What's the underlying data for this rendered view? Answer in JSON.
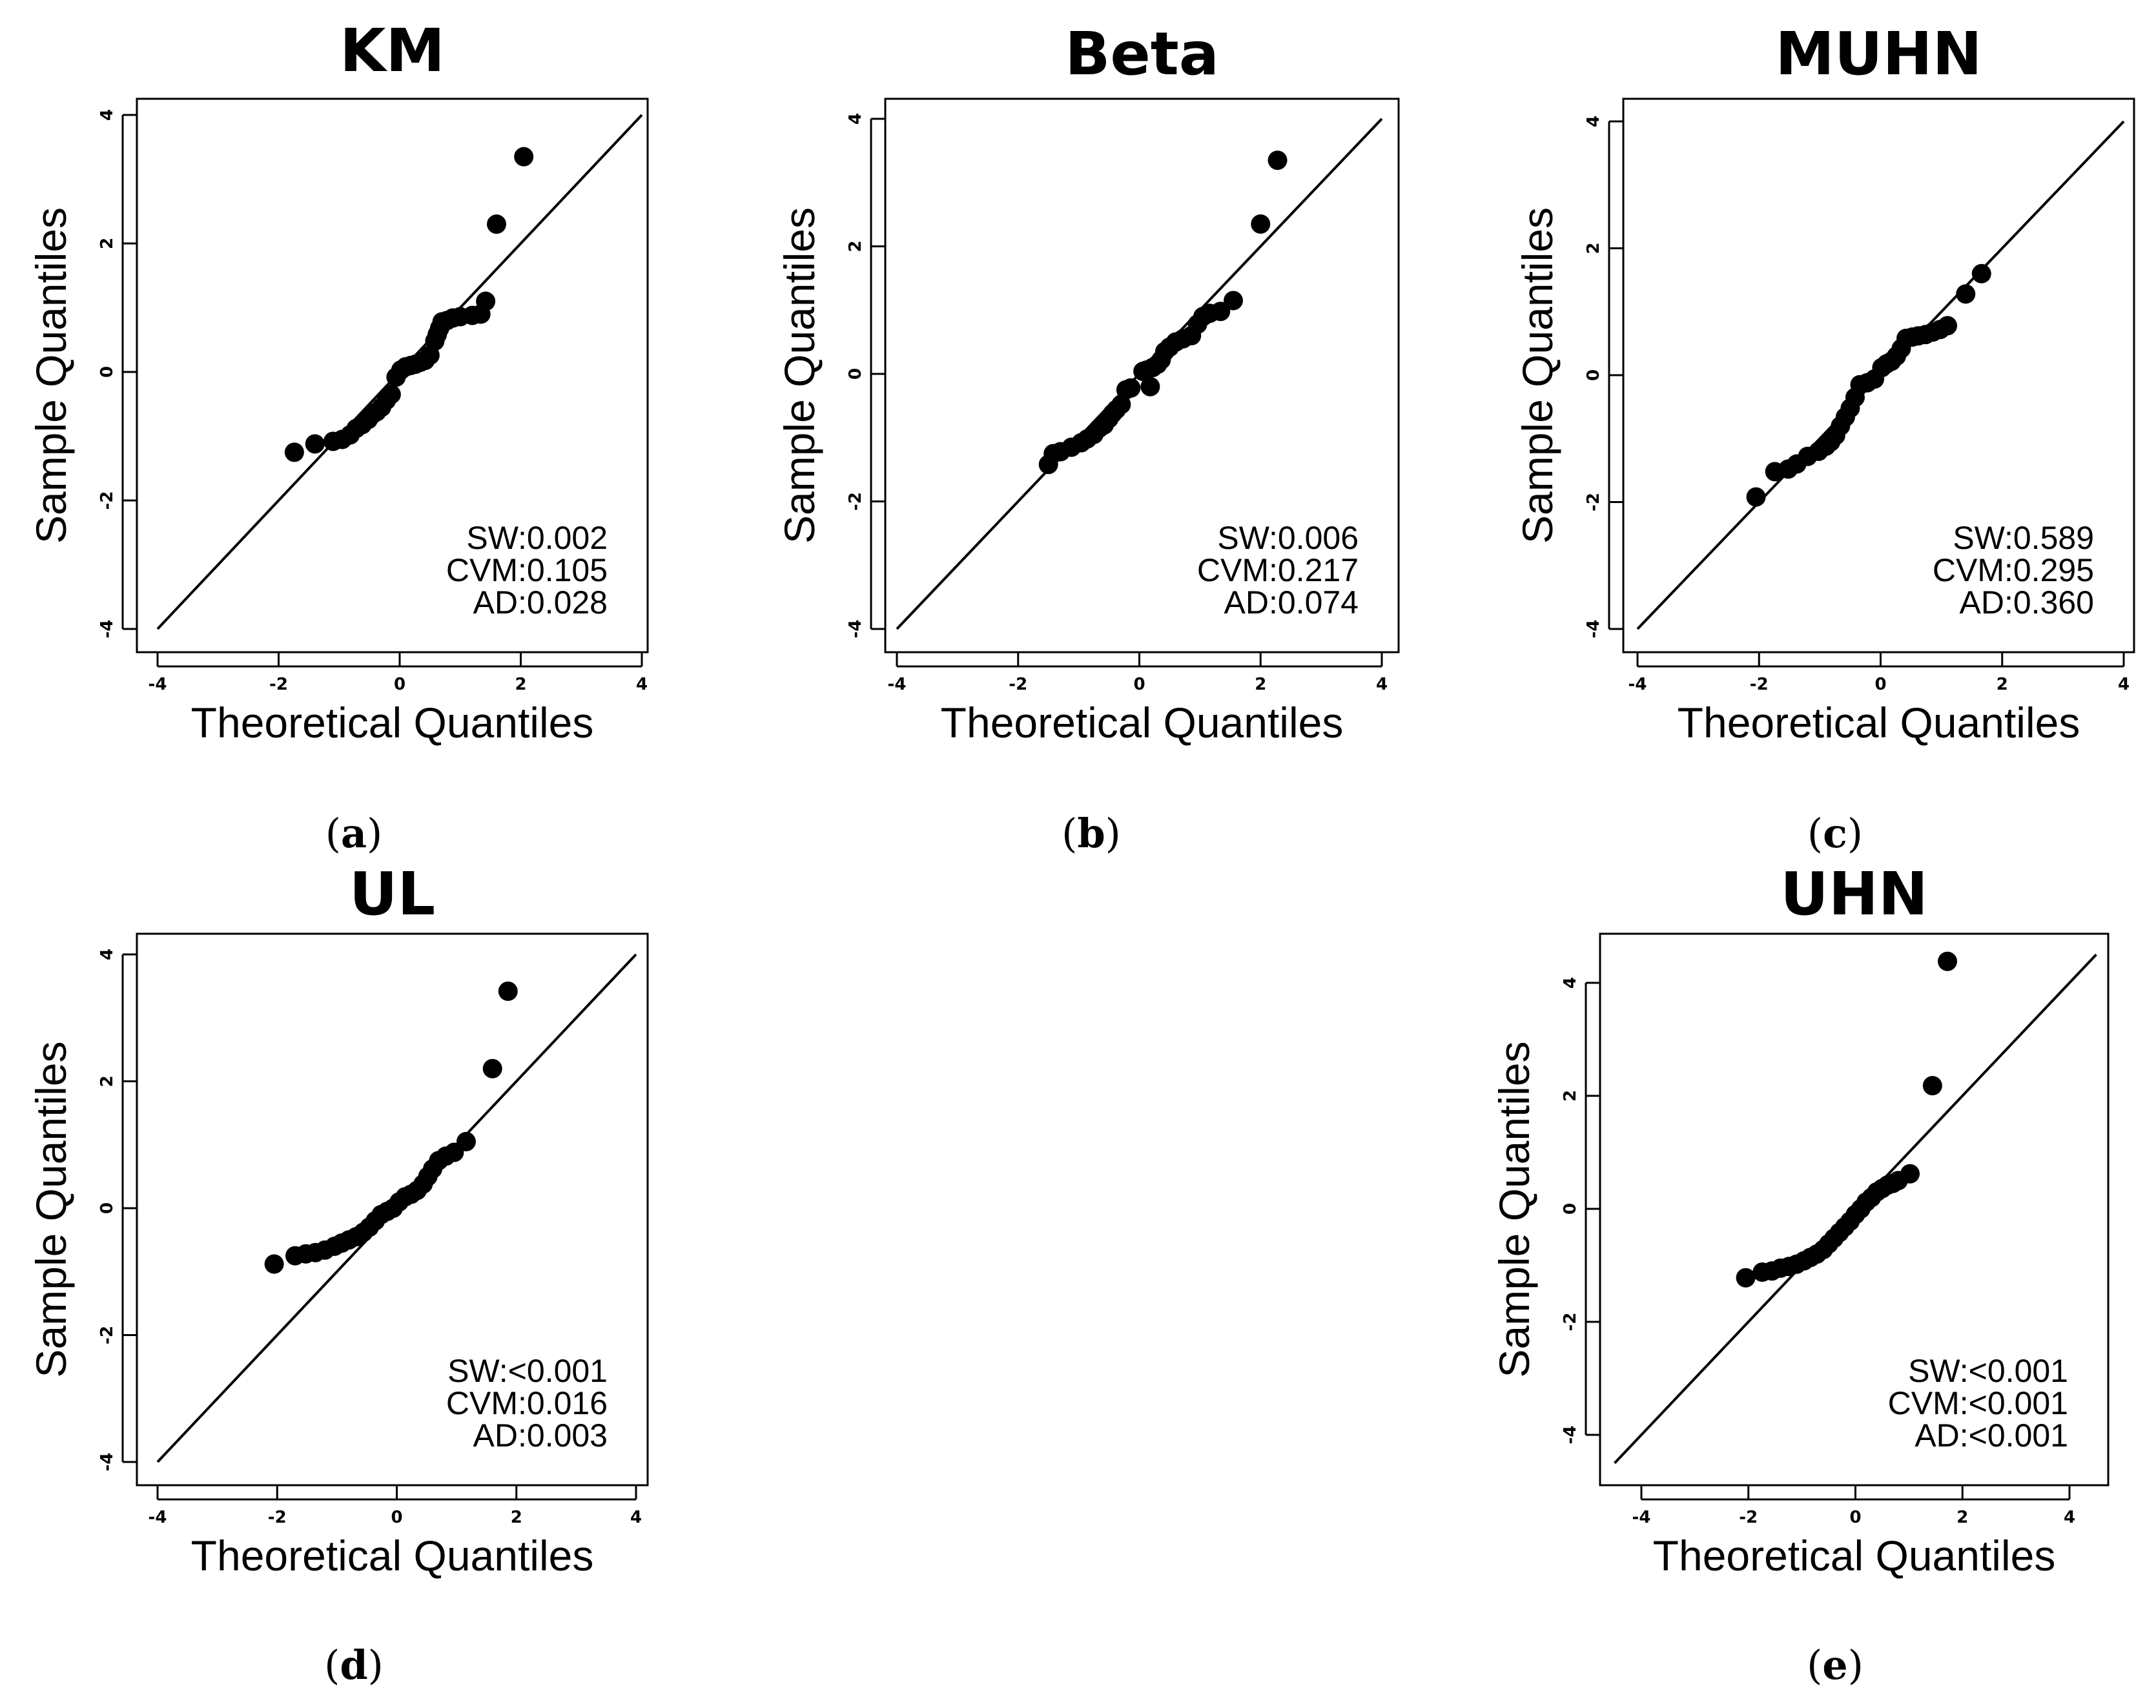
{
  "chart_data": [
    {
      "type": "scatter",
      "title": "KM",
      "caption": "a",
      "xlabel": "Theoretical Quantiles",
      "ylabel": "Sample Quantiles",
      "xlim": [
        -4,
        4
      ],
      "ylim": [
        -4,
        4
      ],
      "xticks": [
        "-4",
        "-2",
        "0",
        "2",
        "4"
      ],
      "yticks": [
        "-4",
        "-2",
        "0",
        "2",
        "4"
      ],
      "reference_line": [
        [
          -4,
          -4
        ],
        [
          4,
          4
        ]
      ],
      "stats": [
        "SW:0.002",
        "CVM:0.105",
        "AD:0.028"
      ],
      "x": [
        -1.74,
        -1.4,
        -1.1,
        -0.95,
        -0.82,
        -0.72,
        -0.62,
        -0.52,
        -0.45,
        -0.38,
        -0.3,
        -0.22,
        -0.14,
        -0.06,
        0.02,
        0.1,
        0.18,
        0.26,
        0.34,
        0.42,
        0.5,
        0.58,
        0.62,
        0.66,
        0.7,
        0.78,
        0.88,
        1.0,
        1.2,
        1.34,
        1.42,
        1.6,
        2.05
      ],
      "y": [
        -1.25,
        -1.12,
        -1.08,
        -1.05,
        -0.98,
        -0.88,
        -0.82,
        -0.74,
        -0.66,
        -0.62,
        -0.55,
        -0.44,
        -0.35,
        -0.08,
        0.03,
        0.08,
        0.1,
        0.12,
        0.15,
        0.18,
        0.26,
        0.48,
        0.58,
        0.68,
        0.78,
        0.8,
        0.84,
        0.86,
        0.88,
        0.9,
        1.1,
        2.3,
        3.35
      ]
    },
    {
      "type": "scatter",
      "title": "Beta",
      "caption": "b",
      "xlabel": "Theoretical Quantiles",
      "ylabel": "Sample Quantiles",
      "xlim": [
        -4,
        4
      ],
      "ylim": [
        -4,
        4
      ],
      "xticks": [
        "-4",
        "-2",
        "0",
        "2",
        "4"
      ],
      "yticks": [
        "-4",
        "-2",
        "0",
        "2",
        "4"
      ],
      "reference_line": [
        [
          -4,
          -4
        ],
        [
          4,
          4
        ]
      ],
      "stats": [
        "SW:0.006",
        "CVM:0.217",
        "AD:0.074"
      ],
      "x": [
        -1.5,
        -1.42,
        -1.3,
        -1.12,
        -0.96,
        -0.86,
        -0.75,
        -0.66,
        -0.58,
        -0.5,
        -0.44,
        -0.38,
        -0.3,
        -0.22,
        -0.14,
        0.06,
        0.12,
        0.22,
        0.3,
        0.36,
        0.42,
        0.5,
        0.6,
        0.72,
        0.86,
        0.96,
        1.05,
        1.16,
        1.34,
        1.55,
        2.0,
        2.28,
        0.18
      ],
      "y": [
        -1.42,
        -1.25,
        -1.22,
        -1.15,
        -1.08,
        -1.02,
        -0.95,
        -0.85,
        -0.8,
        -0.7,
        -0.62,
        -0.56,
        -0.48,
        -0.25,
        -0.22,
        0.04,
        0.06,
        0.1,
        0.15,
        0.22,
        0.35,
        0.42,
        0.5,
        0.55,
        0.6,
        0.78,
        0.9,
        0.95,
        0.98,
        1.15,
        2.35,
        3.35,
        -0.2
      ]
    },
    {
      "type": "scatter",
      "title": "MUHN",
      "caption": "c",
      "xlabel": "Theoretical Quantiles",
      "ylabel": "Sample Quantiles",
      "xlim": [
        -4,
        4
      ],
      "ylim": [
        -4,
        4
      ],
      "xticks": [
        "-4",
        "-2",
        "0",
        "2",
        "4"
      ],
      "yticks": [
        "-4",
        "-2",
        "0",
        "2",
        "4"
      ],
      "reference_line": [
        [
          -4,
          -4
        ],
        [
          4,
          4
        ]
      ],
      "stats": [
        "SW:0.589",
        "CVM:0.295",
        "AD:0.360"
      ],
      "x": [
        -2.05,
        -1.74,
        -1.52,
        -1.38,
        -1.2,
        -1.02,
        -0.9,
        -0.82,
        -0.74,
        -0.66,
        -0.58,
        -0.5,
        -0.42,
        -0.34,
        -0.22,
        -0.1,
        0.02,
        0.1,
        0.18,
        0.26,
        0.34,
        0.42,
        0.52,
        0.62,
        0.74,
        0.86,
        0.98,
        1.1,
        1.4,
        1.66
      ],
      "y": [
        -1.92,
        -1.52,
        -1.48,
        -1.4,
        -1.28,
        -1.2,
        -1.12,
        -1.05,
        -0.95,
        -0.8,
        -0.66,
        -0.52,
        -0.35,
        -0.15,
        -0.12,
        -0.06,
        0.12,
        0.18,
        0.22,
        0.3,
        0.42,
        0.58,
        0.6,
        0.62,
        0.64,
        0.68,
        0.72,
        0.78,
        1.28,
        1.6
      ]
    },
    {
      "type": "scatter",
      "title": "UL",
      "caption": "d",
      "xlabel": "Theoretical Quantiles",
      "ylabel": "Sample Quantiles",
      "xlim": [
        -4,
        4
      ],
      "ylim": [
        -4,
        4
      ],
      "xticks": [
        "-4",
        "-2",
        "0",
        "2",
        "4"
      ],
      "yticks": [
        "-4",
        "-2",
        "0",
        "2",
        "4"
      ],
      "reference_line": [
        [
          -4,
          -4
        ],
        [
          4,
          4
        ]
      ],
      "stats": [
        "SW:<0.001",
        "CVM:0.016",
        "AD:0.003"
      ],
      "x": [
        -2.05,
        -1.7,
        -1.52,
        -1.36,
        -1.2,
        -1.04,
        -0.92,
        -0.8,
        -0.68,
        -0.56,
        -0.46,
        -0.36,
        -0.26,
        -0.16,
        -0.06,
        0.04,
        0.14,
        0.24,
        0.34,
        0.44,
        0.52,
        0.6,
        0.7,
        0.82,
        0.96,
        1.16,
        1.6,
        1.86
      ],
      "y": [
        -0.88,
        -0.75,
        -0.72,
        -0.7,
        -0.66,
        -0.6,
        -0.55,
        -0.5,
        -0.45,
        -0.38,
        -0.3,
        -0.2,
        -0.1,
        -0.05,
        0.0,
        0.1,
        0.18,
        0.22,
        0.28,
        0.38,
        0.5,
        0.62,
        0.75,
        0.82,
        0.88,
        1.05,
        2.2,
        3.42
      ]
    },
    {
      "type": "scatter",
      "title": "UHN",
      "caption": "e",
      "xlabel": "Theoretical Quantiles",
      "ylabel": "Sample Quantiles",
      "xlim": [
        -4.5,
        4.5
      ],
      "ylim": [
        -4.5,
        4.5
      ],
      "xticks": [
        "-4",
        "-2",
        "0",
        "2",
        "4"
      ],
      "yticks": [
        "-4",
        "-2",
        "0",
        "2",
        "4"
      ],
      "reference_line": [
        [
          -4.5,
          -4.5
        ],
        [
          4.5,
          4.5
        ]
      ],
      "stats": [
        "SW:<0.001",
        "CVM:<0.001",
        "AD:<0.001"
      ],
      "x": [
        -2.05,
        -1.74,
        -1.56,
        -1.4,
        -1.24,
        -1.1,
        -0.96,
        -0.84,
        -0.72,
        -0.6,
        -0.5,
        -0.4,
        -0.3,
        -0.2,
        -0.1,
        0.0,
        0.1,
        0.2,
        0.3,
        0.4,
        0.5,
        0.6,
        0.7,
        0.8,
        1.02,
        1.44,
        1.72
      ],
      "y": [
        -1.22,
        -1.12,
        -1.1,
        -1.05,
        -1.02,
        -0.98,
        -0.92,
        -0.86,
        -0.8,
        -0.72,
        -0.62,
        -0.52,
        -0.42,
        -0.32,
        -0.22,
        -0.1,
        0.0,
        0.12,
        0.2,
        0.3,
        0.36,
        0.42,
        0.45,
        0.5,
        0.62,
        2.18,
        4.38
      ]
    }
  ]
}
